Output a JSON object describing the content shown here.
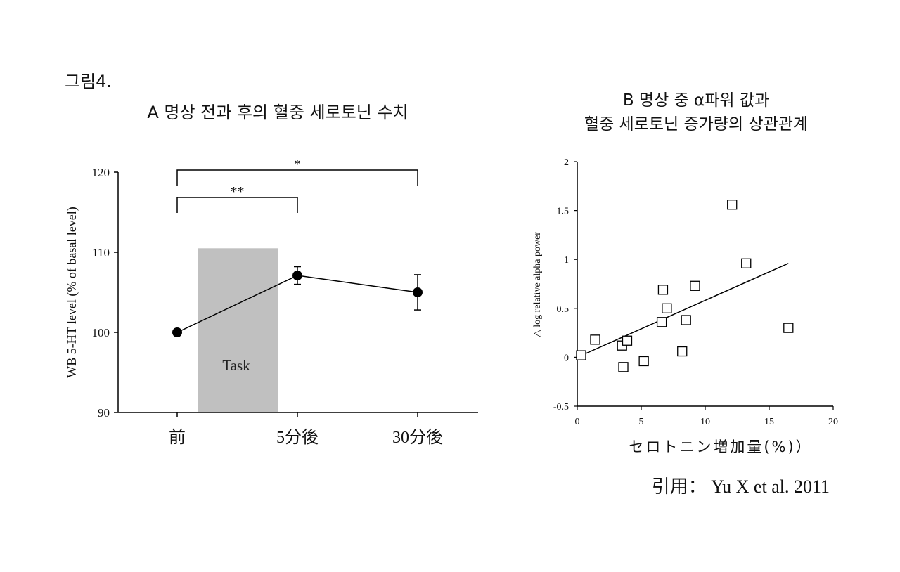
{
  "figure_label": "그림4.",
  "citation": "引用： Yu X et al. 2011",
  "chart_data": [
    {
      "type": "line",
      "title": "A 명상 전과 후의 혈중 세로토닌 수치",
      "ylabel": "WB 5-HT level (% of basal level)",
      "xlabel": "",
      "ylim": [
        90,
        120
      ],
      "yticks": [
        "90",
        "100",
        "110",
        "120"
      ],
      "categories": [
        "前",
        "5分後",
        "30分後"
      ],
      "values": [
        100,
        107.1,
        105
      ],
      "error": [
        0,
        1.1,
        2.2
      ],
      "shaded_region": {
        "label": "Task",
        "ymax": 110.5
      },
      "significance": [
        {
          "from": "前",
          "to": "5分後",
          "label": "**"
        },
        {
          "from": "前",
          "to": "30分後",
          "label": "*"
        }
      ]
    },
    {
      "type": "scatter",
      "title_lines": [
        "B 명상 중 α파워 값과",
        "혈중 세로토닌 증가량의 상관관계"
      ],
      "ylabel": "△ log relative alpha power",
      "xlabel": "セロトニン増加量(%)）",
      "xlim": [
        0,
        20
      ],
      "ylim": [
        -0.5,
        2
      ],
      "xticks": [
        "0",
        "5",
        "10",
        "15",
        "20"
      ],
      "yticks": [
        "-0.5",
        "0",
        "0.5",
        "1",
        "1.5",
        "2"
      ],
      "points": [
        {
          "x": 0.3,
          "y": 0.02
        },
        {
          "x": 1.4,
          "y": 0.18
        },
        {
          "x": 3.5,
          "y": 0.12
        },
        {
          "x": 3.6,
          "y": -0.1
        },
        {
          "x": 3.9,
          "y": 0.17
        },
        {
          "x": 5.2,
          "y": -0.04
        },
        {
          "x": 6.6,
          "y": 0.36
        },
        {
          "x": 6.7,
          "y": 0.69
        },
        {
          "x": 7.0,
          "y": 0.5
        },
        {
          "x": 8.2,
          "y": 0.06
        },
        {
          "x": 8.5,
          "y": 0.38
        },
        {
          "x": 9.2,
          "y": 0.73
        },
        {
          "x": 12.1,
          "y": 1.56
        },
        {
          "x": 13.2,
          "y": 0.96
        },
        {
          "x": 16.5,
          "y": 0.3
        }
      ],
      "fit_line": {
        "x": [
          0,
          16.5
        ],
        "y": [
          0.0,
          0.96
        ]
      }
    }
  ]
}
